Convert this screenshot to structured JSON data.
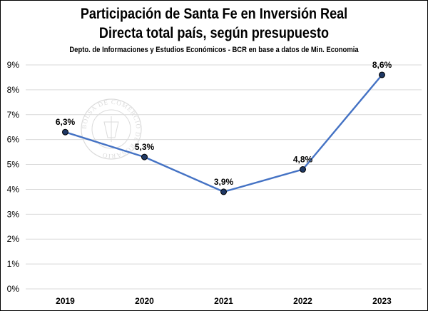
{
  "chart_data": {
    "type": "line",
    "title": "Participación de Santa Fe en Inversión Real Directa total país, según presupuesto",
    "title_lines": [
      "Participación de Santa Fe en Inversión Real",
      "Directa total país, según presupuesto"
    ],
    "subtitle": "Depto. de Informaciones y Estudios Económicos - BCR en base a datos de Min. Economia",
    "categories": [
      "2019",
      "2020",
      "2021",
      "2022",
      "2023"
    ],
    "values": [
      6.3,
      5.3,
      3.9,
      4.8,
      8.6
    ],
    "data_labels": [
      "6,3%",
      "5,3%",
      "3,9%",
      "4,8%",
      "8,6%"
    ],
    "y_ticks": [
      "0%",
      "1%",
      "2%",
      "3%",
      "4%",
      "5%",
      "6%",
      "7%",
      "8%",
      "9%"
    ],
    "ylim": [
      0,
      9
    ],
    "grid": true,
    "legend": "none",
    "line_color": "#4472c4",
    "marker_fill": "#1f3864",
    "grid_color": "#d9d9d9",
    "watermark_text": "BOLSA DE COMERCIO DE ROSARIO"
  }
}
